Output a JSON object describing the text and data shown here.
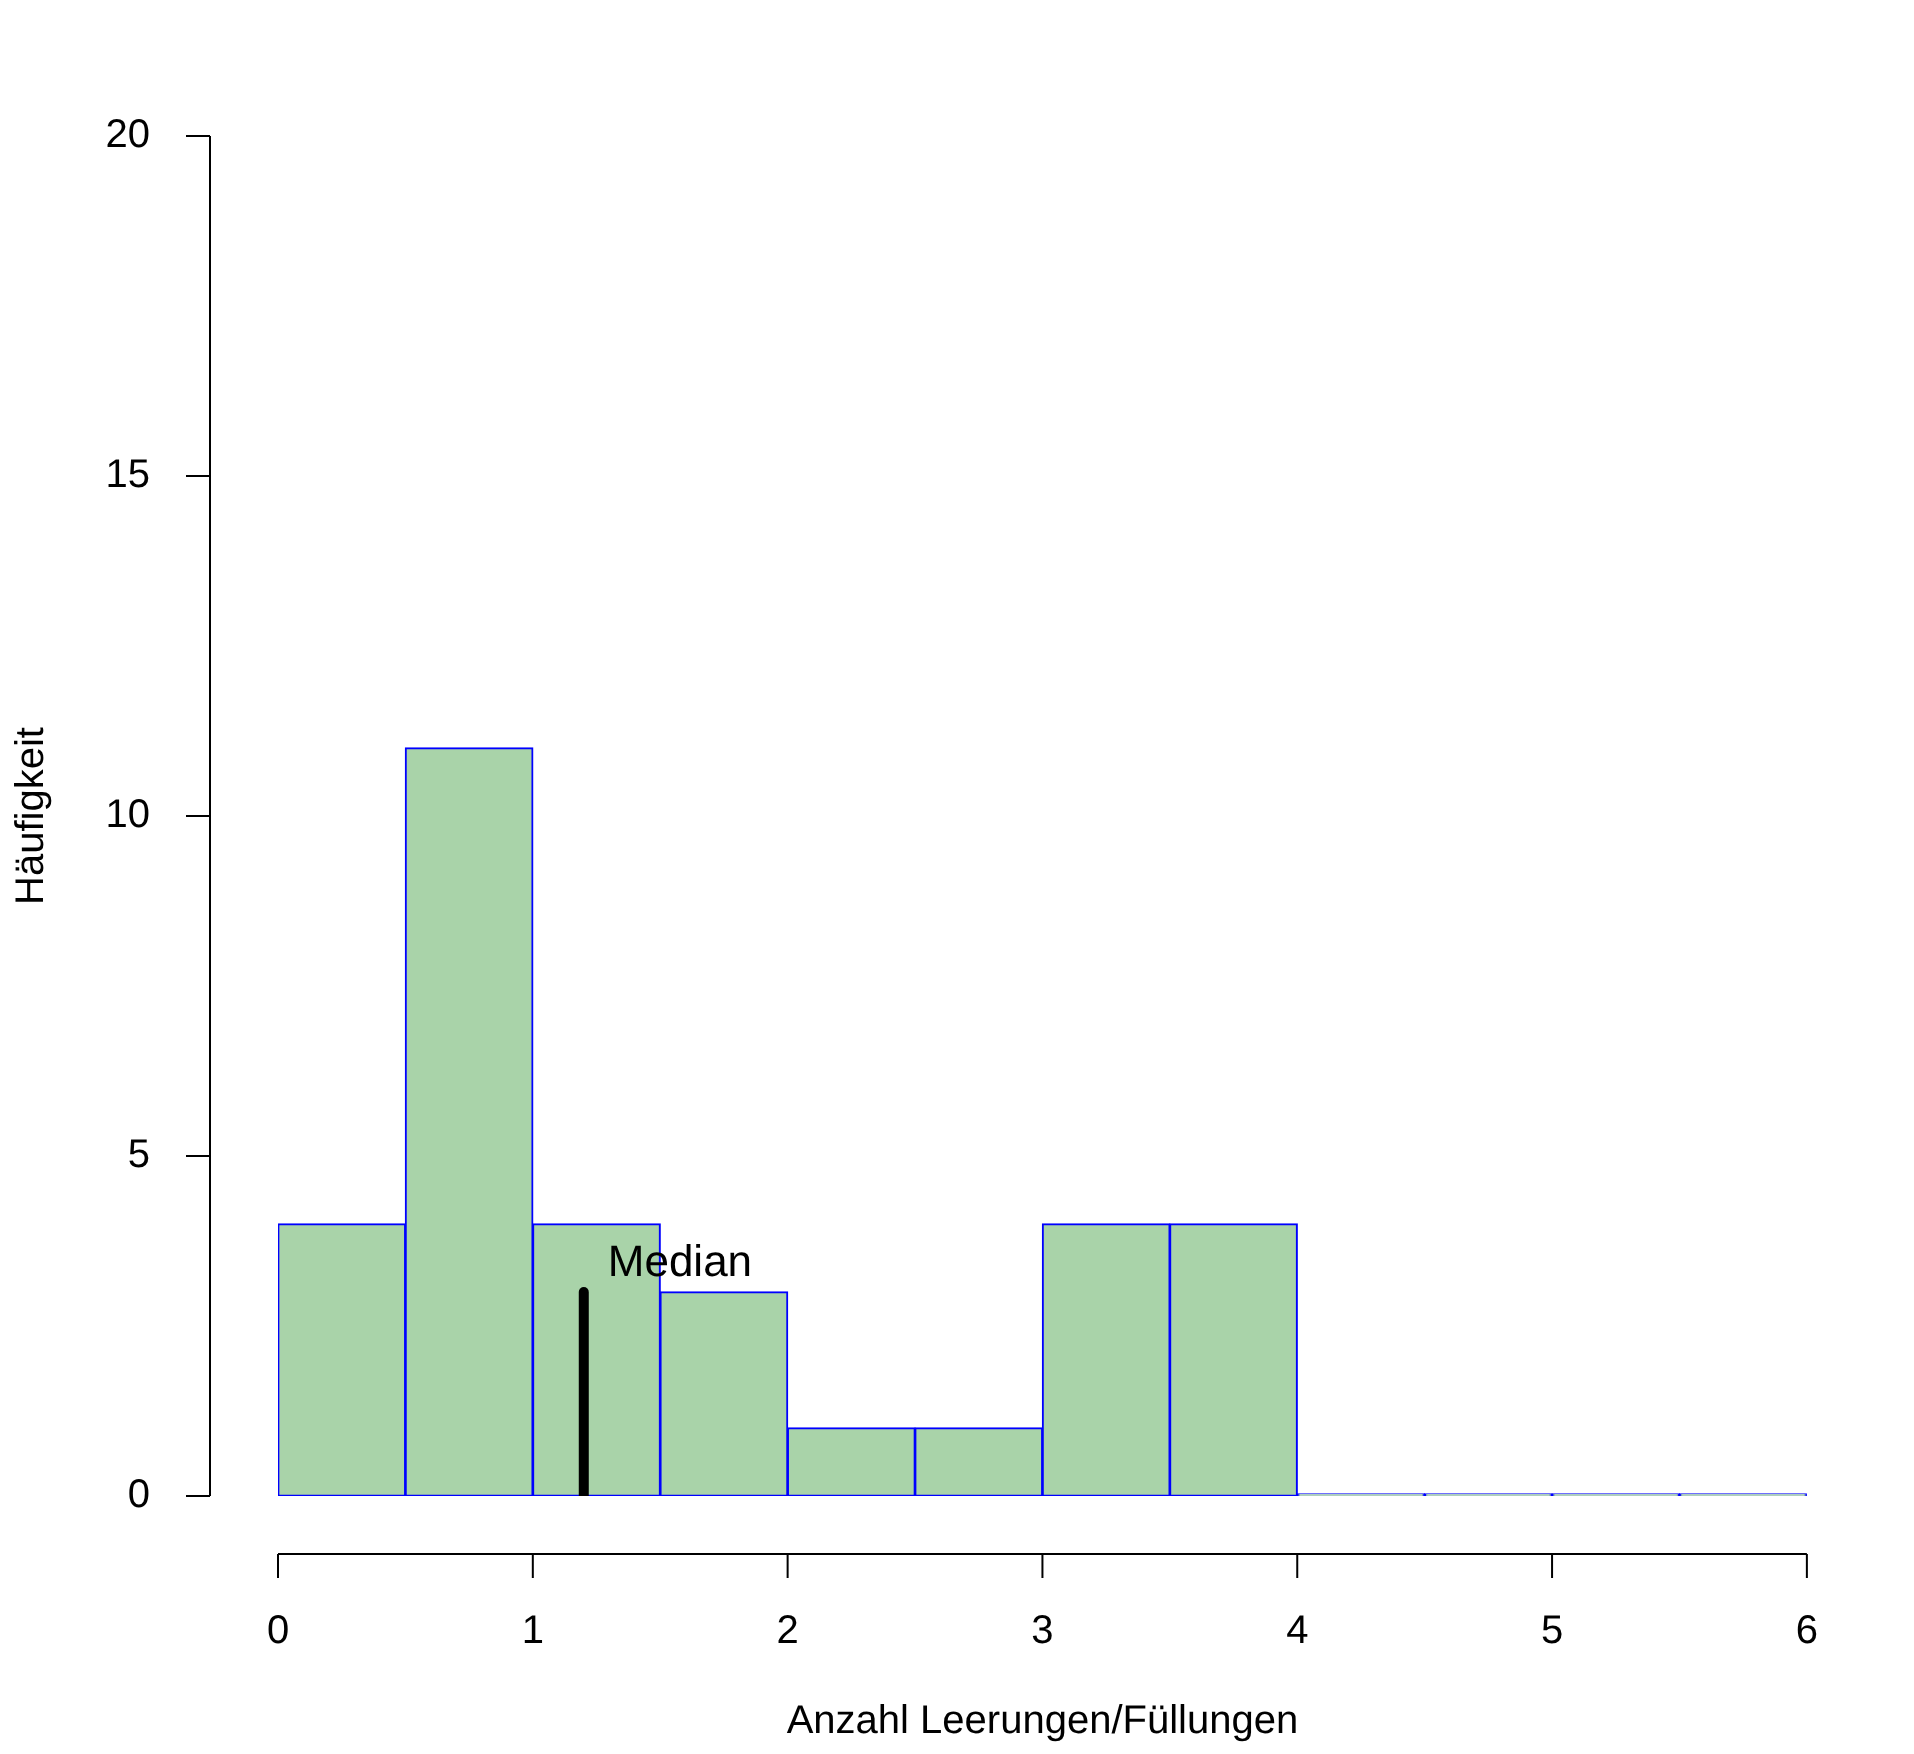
{
  "chart_data": {
    "type": "histogram",
    "xlabel": "Anzahl Leerungen/Füllungen",
    "ylabel": "Häufigkeit",
    "bins": [
      0,
      0.5,
      1,
      1.5,
      2,
      2.5,
      3,
      3.5,
      4,
      4.5,
      5,
      5.5,
      6
    ],
    "values": [
      4,
      11,
      4,
      3,
      1,
      1,
      4,
      4,
      0,
      0,
      0,
      0
    ],
    "color": "#a9d3a9",
    "series": [
      {
        "type": "line",
        "x": [
          1.2,
          1.2
        ],
        "values": [
          0,
          3
        ],
        "color": "#000000"
      }
    ],
    "xlim": [
      0,
      6
    ],
    "xticks": [
      0,
      1,
      2,
      3,
      4,
      5,
      6
    ],
    "ylim": [
      0,
      20
    ],
    "yticks": [
      0,
      5,
      10,
      15,
      20
    ],
    "annotations": [
      "Median"
    ]
  }
}
